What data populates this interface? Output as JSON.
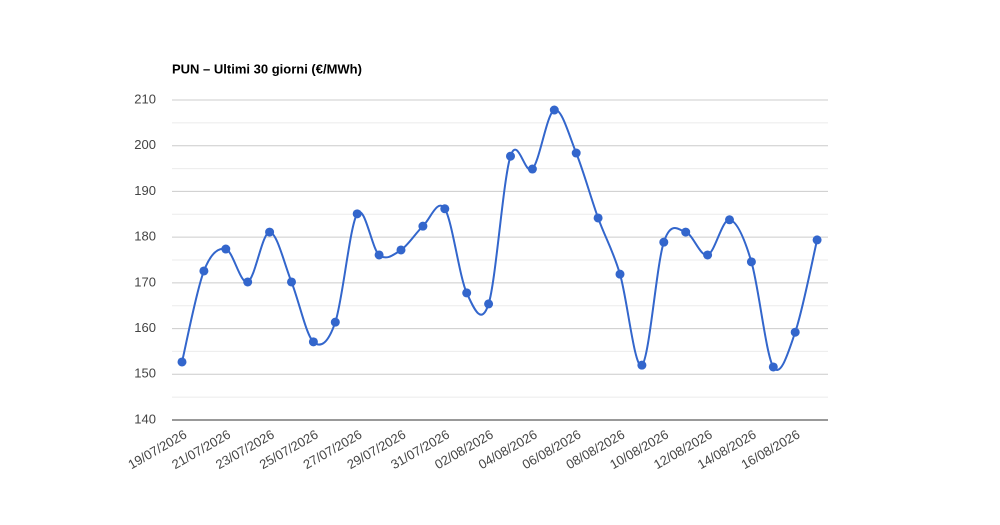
{
  "chart_data": {
    "type": "line",
    "title": "PUN – Ultimi 30 giorni (€/MWh)",
    "categories": [
      "19/07/2026",
      null,
      "21/07/2026",
      null,
      "23/07/2026",
      null,
      "25/07/2026",
      null,
      "27/07/2026",
      null,
      "29/07/2026",
      null,
      "31/07/2026",
      null,
      "02/08/2026",
      null,
      "04/08/2026",
      null,
      "06/08/2026",
      null,
      "08/08/2026",
      null,
      "10/08/2026",
      null,
      "12/08/2026",
      null,
      "14/08/2026",
      null,
      "16/08/2026",
      null
    ],
    "series": [
      {
        "name": "PUN",
        "color": "#3366cc",
        "values": [
          152.7,
          172.6,
          177.4,
          170.2,
          181.1,
          170.2,
          157.1,
          161.4,
          185.1,
          176.1,
          177.2,
          182.4,
          186.2,
          167.8,
          165.4,
          197.7,
          194.9,
          207.8,
          198.4,
          184.2,
          171.9,
          152.0,
          178.9,
          181.1,
          176.1,
          183.8,
          174.6,
          151.6,
          159.2,
          179.4
        ]
      }
    ],
    "ylim": [
      140,
      210
    ],
    "yticks": [
      140,
      150,
      160,
      170,
      180,
      190,
      200,
      210
    ],
    "minor_yticks": [
      145,
      155,
      165,
      175,
      185,
      195,
      205
    ],
    "grid": true,
    "smooth": true
  }
}
